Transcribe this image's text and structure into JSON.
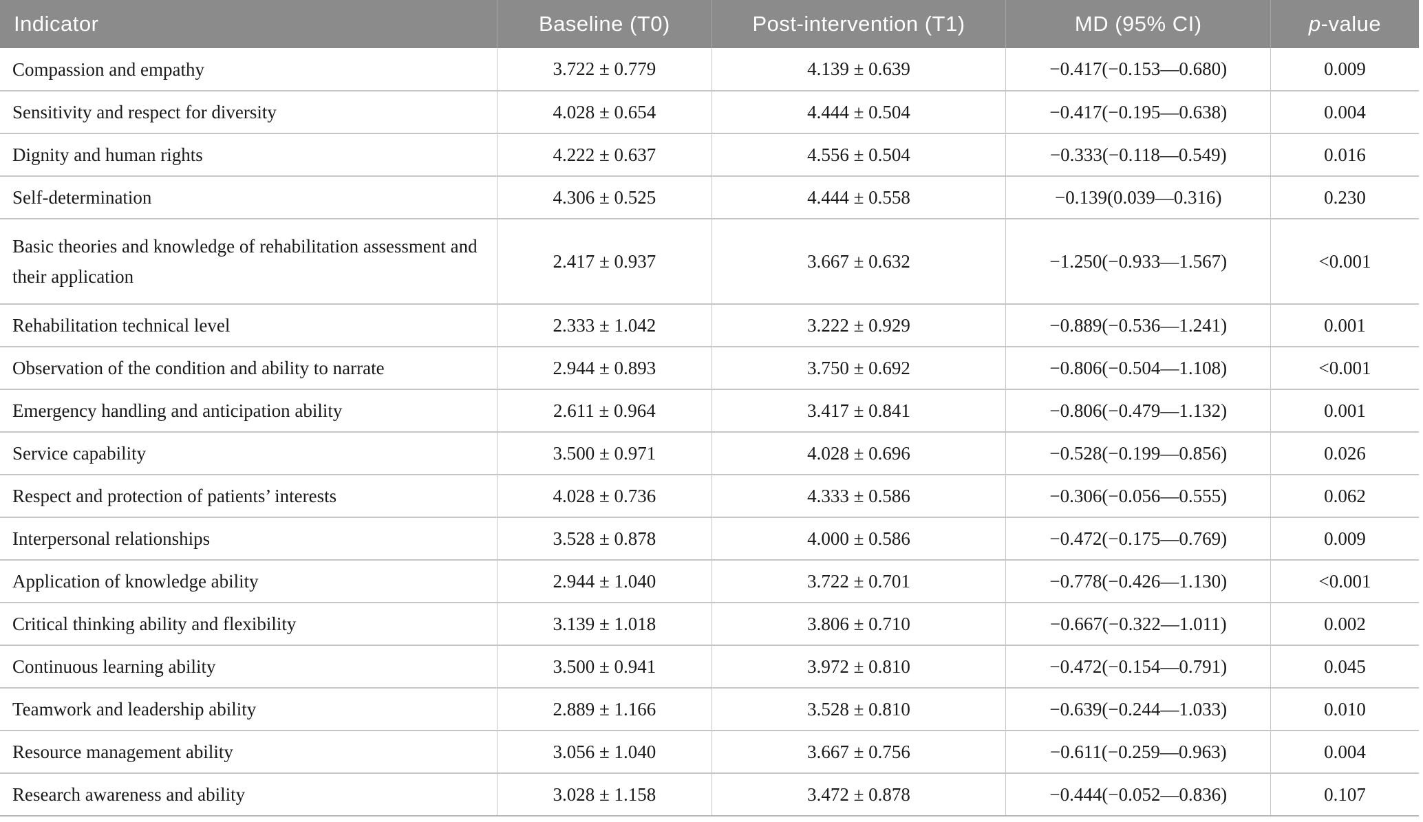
{
  "table": {
    "header": {
      "indicator": "Indicator",
      "baseline": "Baseline (T0)",
      "post": "Post-intervention (T1)",
      "md": "MD (95% CI)",
      "p_italic": "p",
      "p_suffix": "-value"
    },
    "rows": [
      {
        "indicator": "Compassion and empathy",
        "baseline": "3.722 ± 0.779",
        "post": "4.139 ± 0.639",
        "md": "−0.417(−0.153—0.680)",
        "p": "0.009"
      },
      {
        "indicator": "Sensitivity and respect for diversity",
        "baseline": "4.028 ± 0.654",
        "post": "4.444 ± 0.504",
        "md": "−0.417(−0.195—0.638)",
        "p": "0.004"
      },
      {
        "indicator": "Dignity and human rights",
        "baseline": "4.222 ± 0.637",
        "post": "4.556 ± 0.504",
        "md": "−0.333(−0.118—0.549)",
        "p": "0.016"
      },
      {
        "indicator": "Self-determination",
        "baseline": "4.306 ± 0.525",
        "post": "4.444 ± 0.558",
        "md": "−0.139(0.039—0.316)",
        "p": "0.230"
      },
      {
        "indicator": "Basic theories and knowledge of rehabilitation assessment and their application",
        "baseline": "2.417 ± 0.937",
        "post": "3.667 ± 0.632",
        "md": "−1.250(−0.933—1.567)",
        "p": "<0.001"
      },
      {
        "indicator": "Rehabilitation technical level",
        "baseline": "2.333 ± 1.042",
        "post": "3.222 ± 0.929",
        "md": "−0.889(−0.536—1.241)",
        "p": "0.001"
      },
      {
        "indicator": "Observation of the condition and ability to narrate",
        "baseline": "2.944 ± 0.893",
        "post": "3.750 ± 0.692",
        "md": "−0.806(−0.504—1.108)",
        "p": "<0.001"
      },
      {
        "indicator": "Emergency handling and anticipation ability",
        "baseline": "2.611 ± 0.964",
        "post": "3.417 ± 0.841",
        "md": "−0.806(−0.479—1.132)",
        "p": "0.001"
      },
      {
        "indicator": "Service capability",
        "baseline": "3.500 ± 0.971",
        "post": "4.028 ± 0.696",
        "md": "−0.528(−0.199—0.856)",
        "p": "0.026"
      },
      {
        "indicator": "Respect and protection of patients’ interests",
        "baseline": "4.028 ± 0.736",
        "post": "4.333 ± 0.586",
        "md": "−0.306(−0.056—0.555)",
        "p": "0.062"
      },
      {
        "indicator": "Interpersonal relationships",
        "baseline": "3.528 ± 0.878",
        "post": "4.000 ± 0.586",
        "md": "−0.472(−0.175—0.769)",
        "p": "0.009"
      },
      {
        "indicator": "Application of knowledge ability",
        "baseline": "2.944 ± 1.040",
        "post": "3.722 ± 0.701",
        "md": "−0.778(−0.426—1.130)",
        "p": "<0.001"
      },
      {
        "indicator": "Critical thinking ability and flexibility",
        "baseline": "3.139 ± 1.018",
        "post": "3.806 ± 0.710",
        "md": "−0.667(−0.322—1.011)",
        "p": "0.002"
      },
      {
        "indicator": "Continuous learning ability",
        "baseline": "3.500 ± 0.941",
        "post": "3.972 ± 0.810",
        "md": "−0.472(−0.154—0.791)",
        "p": "0.045"
      },
      {
        "indicator": "Teamwork and leadership ability",
        "baseline": "2.889 ± 1.166",
        "post": "3.528 ± 0.810",
        "md": "−0.639(−0.244—1.033)",
        "p": "0.010"
      },
      {
        "indicator": "Resource management ability",
        "baseline": "3.056 ± 1.040",
        "post": "3.667 ± 0.756",
        "md": "−0.611(−0.259—0.963)",
        "p": "0.004"
      },
      {
        "indicator": "Research awareness and ability",
        "baseline": "3.028 ± 1.158",
        "post": "3.472 ± 0.878",
        "md": "−0.444(−0.052—0.836)",
        "p": "0.107"
      }
    ],
    "colors": {
      "header_bg": "#8b8b8b",
      "header_text": "#ffffff",
      "body_text": "#1a1a1a",
      "row_border": "#c6c6c6"
    }
  }
}
